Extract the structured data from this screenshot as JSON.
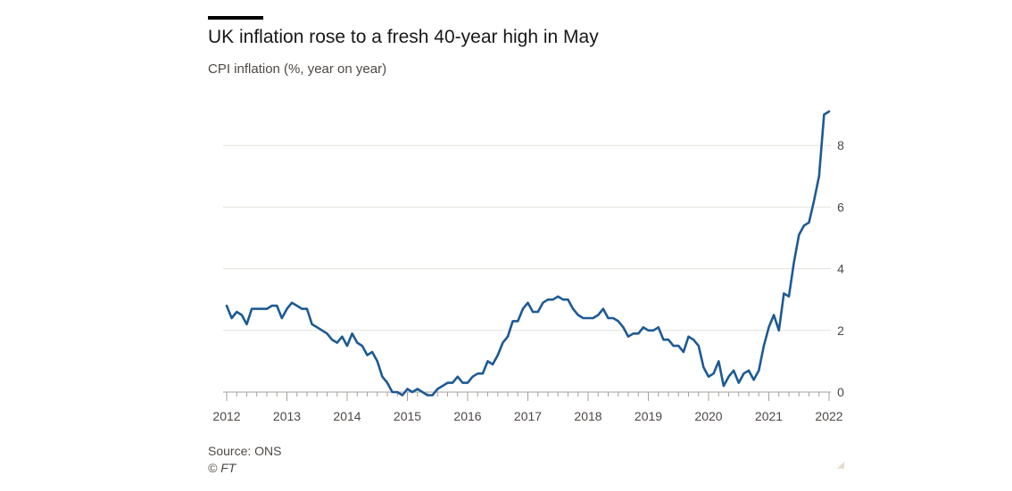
{
  "header": {
    "title": "UK inflation rose to a fresh 40-year high in May",
    "subtitle": "CPI inflation (%, year on year)"
  },
  "footer": {
    "source": "Source: ONS",
    "credit": "© FT"
  },
  "chart_data": {
    "type": "line",
    "title": "UK inflation rose to a fresh 40-year high in May",
    "subtitle": "CPI inflation (%, year on year)",
    "xlabel": "",
    "ylabel": "",
    "x_start": "2012-01",
    "x_interval": "month",
    "xlim": [
      "2012-01",
      "2022-05"
    ],
    "ylim": [
      0,
      9.2
    ],
    "y_ticks": [
      0,
      2,
      4,
      6,
      8
    ],
    "y_tick_labels": [
      "0",
      "2",
      "4",
      "6",
      "8"
    ],
    "y_axis_position": "right",
    "x_tick_labels": [
      "2012",
      "2013",
      "2014",
      "2015",
      "2016",
      "2017",
      "2018",
      "2019",
      "2020",
      "2021",
      "2022"
    ],
    "grid": "horizontal",
    "legend": "none",
    "colors": {
      "line": "#1d5a94",
      "grid": "#e6e2dc",
      "axis": "#a6a19b"
    },
    "series": [
      {
        "values": [
          2.8,
          2.4,
          2.6,
          2.5,
          2.2,
          2.7,
          2.7,
          2.7,
          2.7,
          2.8,
          2.8,
          2.4,
          2.7,
          2.9,
          2.8,
          2.7,
          2.7,
          2.2,
          2.1,
          2.0,
          1.9,
          1.7,
          1.6,
          1.8,
          1.5,
          1.9,
          1.6,
          1.5,
          1.2,
          1.3,
          1.0,
          0.5,
          0.3,
          0.0,
          0.0,
          -0.1,
          0.1,
          0.0,
          0.1,
          0.0,
          -0.1,
          -0.1,
          0.1,
          0.2,
          0.3,
          0.3,
          0.5,
          0.3,
          0.3,
          0.5,
          0.6,
          0.6,
          1.0,
          0.9,
          1.2,
          1.6,
          1.8,
          2.3,
          2.3,
          2.7,
          2.9,
          2.6,
          2.6,
          2.9,
          3.0,
          3.0,
          3.1,
          3.0,
          3.0,
          2.7,
          2.5,
          2.4,
          2.4,
          2.4,
          2.5,
          2.7,
          2.4,
          2.4,
          2.3,
          2.1,
          1.8,
          1.9,
          1.9,
          2.1,
          2.0,
          2.0,
          2.1,
          1.7,
          1.7,
          1.5,
          1.5,
          1.3,
          1.8,
          1.7,
          1.5,
          0.8,
          0.5,
          0.6,
          1.0,
          0.2,
          0.5,
          0.7,
          0.3,
          0.6,
          0.7,
          0.4,
          0.7,
          1.5,
          2.1,
          2.5,
          2.0,
          3.2,
          3.1,
          4.2,
          5.1,
          5.4,
          5.5,
          6.2,
          7.0,
          9.0,
          9.1
        ]
      }
    ]
  }
}
